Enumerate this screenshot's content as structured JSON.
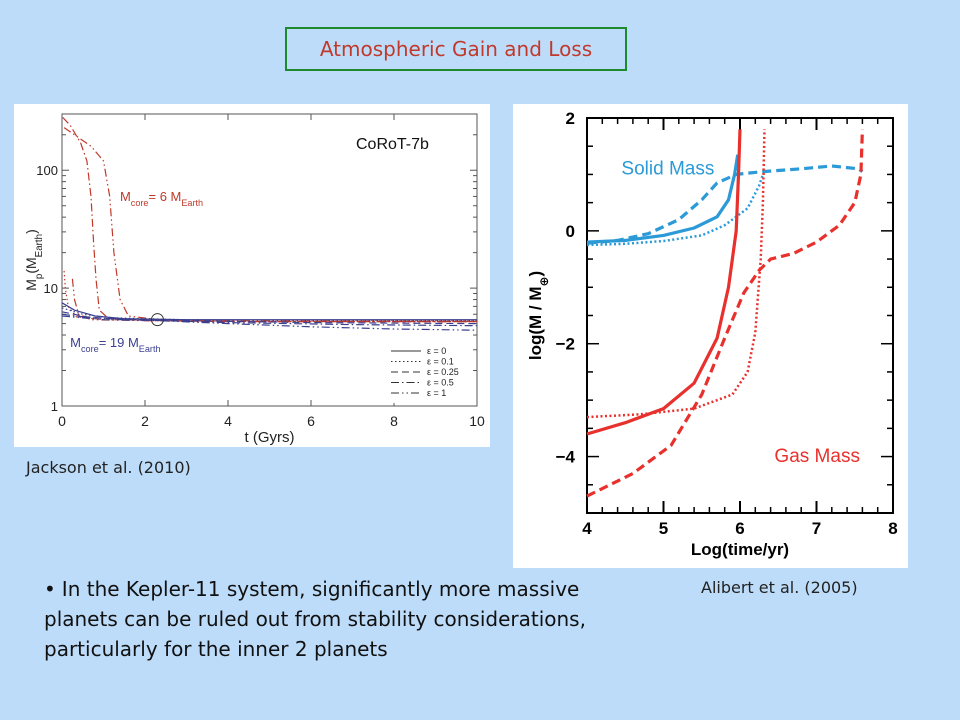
{
  "slide": {
    "title": "Atmospheric Gain and Loss",
    "left_caption": "Jackson et al. (2010)",
    "right_caption": "Alibert et al. (2005)",
    "bullet": "In the Kepler-11 system, significantly more massive planets can be ruled out from stability considerations, particularly for the inner 2 planets",
    "colors": {
      "background": "#bddcf9",
      "title_border": "#1e8a2e",
      "title_text": "#c0392b"
    }
  },
  "chart_data": [
    {
      "type": "line",
      "title": "CoRoT-7b",
      "xlabel": "t (Gyrs)",
      "ylabel": "M",
      "ylabel_sub": "p",
      "ylabel_unit": "(M",
      "ylabel_unit_sub": "Earth",
      "ylabel_close": ")",
      "xlim": [
        0,
        10
      ],
      "ylim": [
        1,
        300
      ],
      "yscale": "log",
      "xticks": [
        0,
        2,
        4,
        6,
        8,
        10
      ],
      "yticks": [
        {
          "value": 1,
          "label": "1"
        },
        {
          "value": 10,
          "label": "10"
        },
        {
          "value": 100,
          "label": "100"
        }
      ],
      "annotations": [
        {
          "pre": "M",
          "sub": "core",
          "post": "= 6 M",
          "sub2": "Earth",
          "color": "#c0392b",
          "x": 1.3,
          "y": 55
        },
        {
          "pre": "M",
          "sub": "core",
          "post": "= 19 M",
          "sub2": "Earth",
          "color": "#3b3f8f",
          "x": 0.1,
          "y": 4.0
        }
      ],
      "marker": {
        "x": 2.3,
        "y": 5.4
      },
      "legend": {
        "placement": "bottom-right",
        "entries": [
          {
            "label": "ε = 0",
            "dash": "solid"
          },
          {
            "label": "ε = 0.1",
            "dash": "dotted"
          },
          {
            "label": "ε = 0.25",
            "dash": "dashed"
          },
          {
            "label": "ε = 0.5",
            "dash": "dashdot"
          },
          {
            "label": "ε = 1",
            "dash": "dashdotdot"
          }
        ]
      },
      "series": [
        {
          "group": "core6",
          "dash": "dashdot",
          "color": "#c0392b",
          "points": [
            [
              0.02,
              280
            ],
            [
              0.2,
              240
            ],
            [
              0.45,
              170
            ],
            [
              0.6,
              120
            ],
            [
              0.7,
              60
            ],
            [
              0.76,
              25
            ],
            [
              0.82,
              12
            ],
            [
              0.9,
              6.5
            ],
            [
              1.1,
              5.6
            ],
            [
              2,
              5.3
            ],
            [
              4,
              5.2
            ],
            [
              10,
              5.2
            ]
          ]
        },
        {
          "group": "core6",
          "dash": "dashdotdot",
          "color": "#c0392b",
          "points": [
            [
              0.05,
              230
            ],
            [
              0.3,
              200
            ],
            [
              0.7,
              160
            ],
            [
              1.0,
              120
            ],
            [
              1.15,
              60
            ],
            [
              1.25,
              20
            ],
            [
              1.4,
              8
            ],
            [
              1.6,
              5.8
            ],
            [
              2.5,
              5.3
            ],
            [
              5,
              5.2
            ],
            [
              10,
              5.2
            ]
          ]
        },
        {
          "group": "core6",
          "dash": "dashdotdot",
          "color": "#c0392b",
          "points": [
            [
              0.25,
              12
            ],
            [
              0.3,
              8
            ],
            [
              0.4,
              6
            ],
            [
              0.7,
              5.4
            ],
            [
              2,
              5.3
            ],
            [
              10,
              5.2
            ]
          ]
        },
        {
          "group": "core6",
          "dash": "dotted",
          "color": "#c0392b",
          "points": [
            [
              0.05,
              14
            ],
            [
              0.08,
              10
            ],
            [
              0.15,
              7
            ],
            [
              0.35,
              5.7
            ],
            [
              1,
              5.4
            ],
            [
              10,
              5.3
            ]
          ]
        },
        {
          "group": "core19",
          "dash": "solid",
          "color": "#3b3f8f",
          "points": [
            [
              0,
              7.5
            ],
            [
              0.3,
              6.5
            ],
            [
              0.8,
              5.8
            ],
            [
              1.5,
              5.5
            ],
            [
              3,
              5.4
            ],
            [
              6,
              5.4
            ],
            [
              10,
              5.4
            ]
          ]
        },
        {
          "group": "core19",
          "dash": "dotted",
          "color": "#3b3f8f",
          "points": [
            [
              0,
              6.8
            ],
            [
              0.5,
              6
            ],
            [
              1.2,
              5.6
            ],
            [
              3,
              5.4
            ],
            [
              6,
              5.3
            ],
            [
              10,
              5.3
            ]
          ]
        },
        {
          "group": "core19",
          "dash": "dashed",
          "color": "#3b3f8f",
          "points": [
            [
              0,
              6.3
            ],
            [
              0.6,
              5.7
            ],
            [
              1.5,
              5.4
            ],
            [
              3,
              5.3
            ],
            [
              6,
              5.1
            ],
            [
              10,
              5.0
            ]
          ]
        },
        {
          "group": "core19",
          "dash": "dashdot",
          "color": "#3b3f8f",
          "points": [
            [
              0,
              6.0
            ],
            [
              0.7,
              5.6
            ],
            [
              1.8,
              5.4
            ],
            [
              4,
              5.1
            ],
            [
              7,
              4.9
            ],
            [
              10,
              4.8
            ]
          ]
        },
        {
          "group": "core19",
          "dash": "dashdotdot",
          "color": "#3b3f8f",
          "points": [
            [
              0,
              5.8
            ],
            [
              1,
              5.4
            ],
            [
              2.3,
              5.3
            ],
            [
              4,
              5.0
            ],
            [
              6,
              4.7
            ],
            [
              8,
              4.5
            ],
            [
              10,
              4.4
            ]
          ]
        }
      ]
    },
    {
      "type": "line",
      "xlabel": "Log(time/yr)",
      "ylabel": "log(M / M",
      "ylabel_sub": "⊕",
      "ylabel_close": ")",
      "xlim": [
        4,
        8
      ],
      "ylim": [
        -5,
        2
      ],
      "xticks": [
        4,
        5,
        6,
        7,
        8
      ],
      "yticks": [
        {
          "value": 2,
          "label": "2"
        },
        {
          "value": 0,
          "label": "0"
        },
        {
          "value": -2,
          "label": "−2"
        },
        {
          "value": -4,
          "label": "−4"
        }
      ],
      "labels": [
        {
          "text": "Solid Mass",
          "color": "#2b9ad6",
          "x": 4.45,
          "y": 1.0
        },
        {
          "text": "Gas Mass",
          "color": "#e8302c",
          "x": 6.45,
          "y": -4.1
        }
      ],
      "series": [
        {
          "name": "Solid Mass",
          "dash": "solid",
          "color": "#2b9ad6",
          "points": [
            [
              4,
              -0.2
            ],
            [
              4.5,
              -0.17
            ],
            [
              5,
              -0.08
            ],
            [
              5.4,
              0.05
            ],
            [
              5.7,
              0.25
            ],
            [
              5.85,
              0.55
            ],
            [
              5.93,
              1.0
            ],
            [
              5.97,
              1.35
            ]
          ]
        },
        {
          "name": "Solid Mass",
          "dash": "dashed",
          "color": "#2b9ad6",
          "points": [
            [
              4,
              -0.22
            ],
            [
              4.4,
              -0.17
            ],
            [
              4.8,
              -0.05
            ],
            [
              5.2,
              0.2
            ],
            [
              5.5,
              0.55
            ],
            [
              5.7,
              0.85
            ],
            [
              5.95,
              1.0
            ],
            [
              6.3,
              1.05
            ],
            [
              6.8,
              1.1
            ],
            [
              7.2,
              1.15
            ],
            [
              7.55,
              1.1
            ],
            [
              7.6,
              1.05
            ]
          ]
        },
        {
          "name": "Solid Mass",
          "dash": "dotted",
          "color": "#2b9ad6",
          "points": [
            [
              4,
              -0.25
            ],
            [
              4.5,
              -0.23
            ],
            [
              5,
              -0.18
            ],
            [
              5.5,
              -0.08
            ],
            [
              5.8,
              0.1
            ],
            [
              6.1,
              0.4
            ],
            [
              6.25,
              0.8
            ],
            [
              6.3,
              1.0
            ]
          ]
        },
        {
          "name": "Gas Mass",
          "dash": "solid",
          "color": "#e8302c",
          "points": [
            [
              4,
              -3.6
            ],
            [
              4.5,
              -3.4
            ],
            [
              5,
              -3.15
            ],
            [
              5.4,
              -2.7
            ],
            [
              5.7,
              -1.9
            ],
            [
              5.85,
              -1.0
            ],
            [
              5.95,
              0.0
            ],
            [
              5.98,
              1.0
            ],
            [
              6.0,
              1.8
            ]
          ]
        },
        {
          "name": "Gas Mass",
          "dash": "dashed",
          "color": "#e8302c",
          "points": [
            [
              4,
              -4.7
            ],
            [
              4.6,
              -4.3
            ],
            [
              5.1,
              -3.8
            ],
            [
              5.5,
              -2.9
            ],
            [
              5.8,
              -1.9
            ],
            [
              6.05,
              -1.1
            ],
            [
              6.25,
              -0.7
            ],
            [
              6.4,
              -0.5
            ],
            [
              6.7,
              -0.4
            ],
            [
              7.0,
              -0.2
            ],
            [
              7.3,
              0.1
            ],
            [
              7.5,
              0.5
            ],
            [
              7.58,
              1.0
            ],
            [
              7.6,
              1.8
            ]
          ]
        },
        {
          "name": "Gas Mass",
          "dash": "dotted",
          "color": "#e8302c",
          "points": [
            [
              4,
              -3.3
            ],
            [
              4.7,
              -3.25
            ],
            [
              5.4,
              -3.15
            ],
            [
              5.9,
              -2.9
            ],
            [
              6.1,
              -2.5
            ],
            [
              6.2,
              -1.8
            ],
            [
              6.27,
              -0.5
            ],
            [
              6.3,
              0.5
            ],
            [
              6.32,
              1.8
            ]
          ]
        }
      ]
    }
  ]
}
